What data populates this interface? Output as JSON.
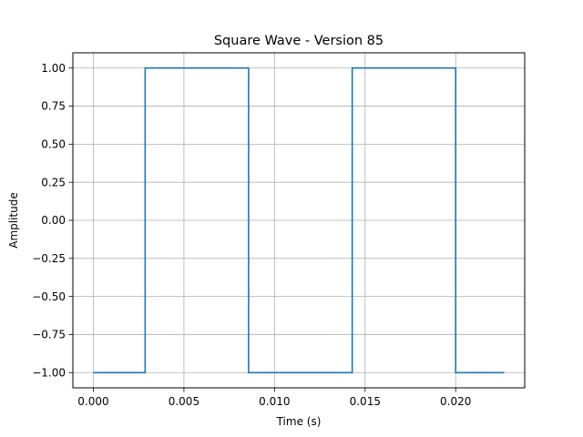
{
  "chart_data": {
    "type": "line",
    "title": "Square Wave - Version 85",
    "xlabel": "Time (s)",
    "ylabel": "Amplitude",
    "xlim": [
      -0.00113,
      0.02381
    ],
    "ylim": [
      -1.1,
      1.1
    ],
    "grid": true,
    "x_ticks": [
      {
        "value": 0.0,
        "label": "0.000"
      },
      {
        "value": 0.005,
        "label": "0.005"
      },
      {
        "value": 0.01,
        "label": "0.010"
      },
      {
        "value": 0.015,
        "label": "0.015"
      },
      {
        "value": 0.02,
        "label": "0.020"
      }
    ],
    "y_ticks": [
      {
        "value": 1.0,
        "label": "1.00"
      },
      {
        "value": 0.75,
        "label": "0.75"
      },
      {
        "value": 0.5,
        "label": "0.50"
      },
      {
        "value": 0.25,
        "label": "0.25"
      },
      {
        "value": 0.0,
        "label": "0.00"
      },
      {
        "value": -0.25,
        "label": "−0.25"
      },
      {
        "value": -0.5,
        "label": "−0.50"
      },
      {
        "value": -0.75,
        "label": "−0.75"
      },
      {
        "value": -1.0,
        "label": "−1.00"
      }
    ],
    "series": [
      {
        "color": "#1f77b4",
        "step": "post",
        "x": [
          0.0,
          0.00286,
          0.00857,
          0.01429,
          0.02,
          0.02268
        ],
        "y": [
          -1,
          1,
          -1,
          1,
          -1,
          -1
        ]
      }
    ]
  },
  "colors": {
    "line": "#1f77b4",
    "grid": "#b0b0b0",
    "axes": "#000000",
    "background": "#ffffff"
  }
}
